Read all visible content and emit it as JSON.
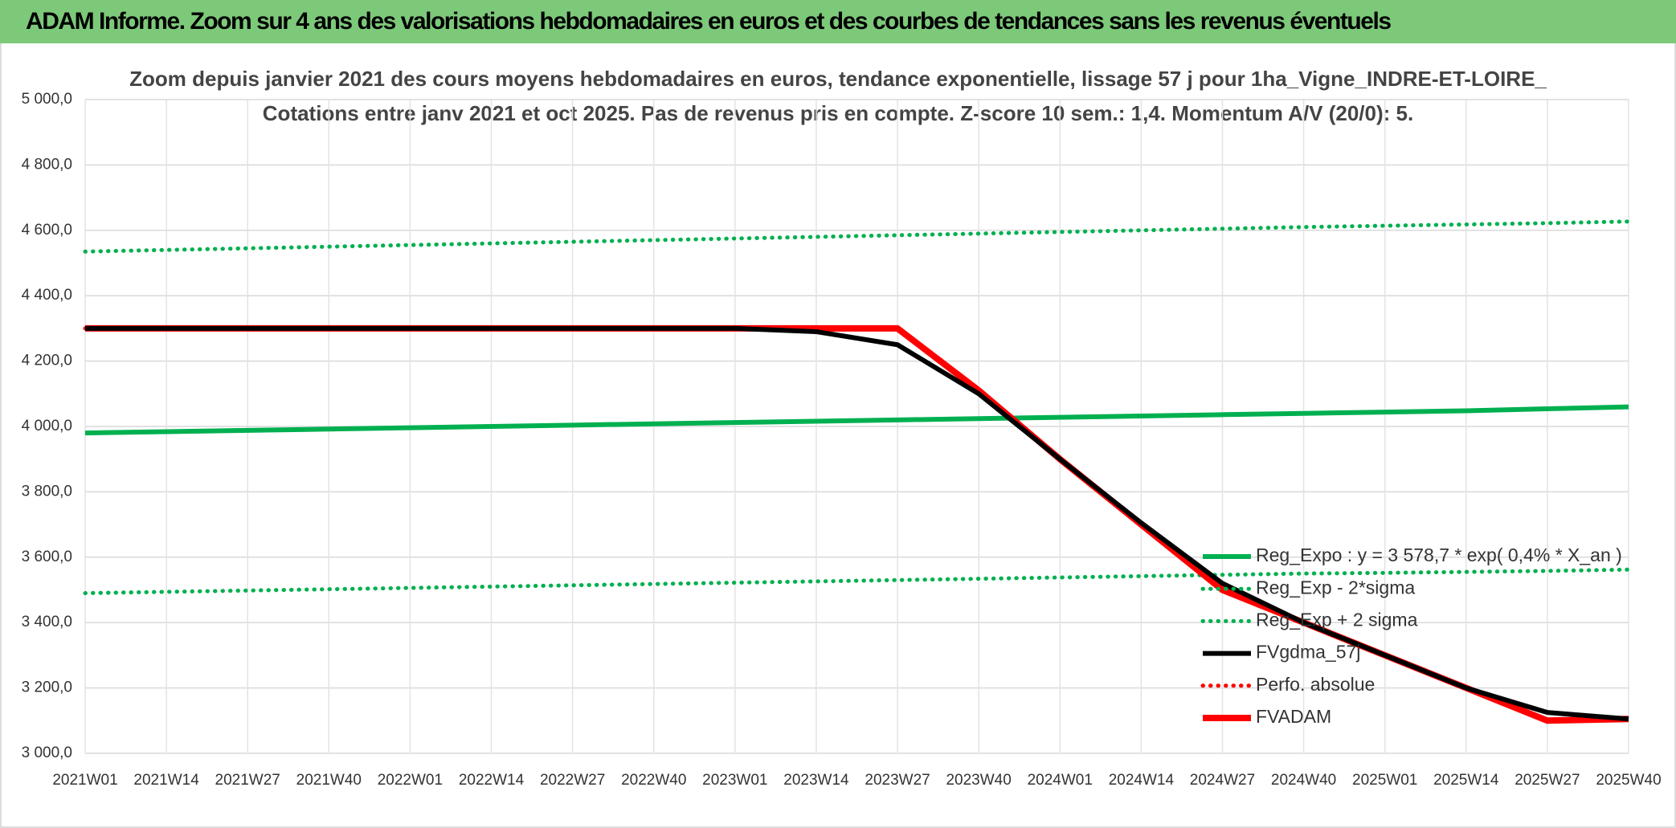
{
  "header": {
    "title": "ADAM Informe. Zoom sur 4 ans des valorisations hebdomadaires en euros et des courbes de tendances sans les revenus éventuels"
  },
  "chart_data": {
    "type": "line",
    "title": "Zoom depuis janvier 2021 des cours moyens hebdomadaires en euros, tendance exponentielle, lissage 57 j pour 1ha_Vigne_INDRE-ET-LOIRE_",
    "subtitle": "Cotations entre janv 2021 et oct 2025. Pas de revenus pris en compte. Z-score 10 sem.: 1,4. Momentum A/V (20/0): 5.",
    "categories": [
      "2021W01",
      "2021W14",
      "2021W27",
      "2021W40",
      "2022W01",
      "2022W14",
      "2022W27",
      "2022W40",
      "2023W01",
      "2023W14",
      "2023W27",
      "2023W40",
      "2024W01",
      "2024W14",
      "2024W27",
      "2024W40",
      "2025W01",
      "2025W14",
      "2025W27",
      "2025W40"
    ],
    "ylim": [
      3000,
      5000
    ],
    "yticks": [
      {
        "value": 3000,
        "label": "3 000,0"
      },
      {
        "value": 3200,
        "label": "3 200,0"
      },
      {
        "value": 3400,
        "label": "3 400,0"
      },
      {
        "value": 3600,
        "label": "3 600,0"
      },
      {
        "value": 3800,
        "label": "3 800,0"
      },
      {
        "value": 4000,
        "label": "4 000,0"
      },
      {
        "value": 4200,
        "label": "4 200,0"
      },
      {
        "value": 4400,
        "label": "4 400,0"
      },
      {
        "value": 4600,
        "label": "4 600,0"
      },
      {
        "value": 4800,
        "label": "4 800,0"
      },
      {
        "value": 5000,
        "label": "5 000,0"
      }
    ],
    "grid": true,
    "series": [
      {
        "name": "Reg_Expo : y = 3 578,7 * exp( 0,4% * X_an )",
        "color": "#00b050",
        "style": "solid",
        "values": [
          3980,
          3984,
          3988,
          3992,
          3996,
          4000,
          4004,
          4008,
          4012,
          4016,
          4020,
          4024,
          4028,
          4032,
          4036,
          4040,
          4044,
          4048,
          4054,
          4060
        ]
      },
      {
        "name": "Reg_Exp - 2*sigma",
        "color": "#00b050",
        "style": "dotted",
        "values": [
          3490,
          3494,
          3498,
          3502,
          3506,
          3510,
          3514,
          3518,
          3522,
          3526,
          3530,
          3534,
          3538,
          3542,
          3546,
          3550,
          3552,
          3555,
          3558,
          3562
        ]
      },
      {
        "name": "Reg_Exp + 2 sigma",
        "color": "#00b050",
        "style": "dotted",
        "values": [
          4535,
          4540,
          4545,
          4550,
          4555,
          4560,
          4565,
          4570,
          4575,
          4580,
          4585,
          4590,
          4595,
          4600,
          4605,
          4610,
          4614,
          4618,
          4622,
          4627
        ]
      },
      {
        "name": "FVgdma_57j",
        "color": "#000000",
        "style": "solid",
        "values": [
          4300,
          4300,
          4300,
          4300,
          4300,
          4300,
          4300,
          4300,
          4300,
          4290,
          4250,
          4100,
          3900,
          3705,
          3520,
          3400,
          3300,
          3200,
          3125,
          3105
        ]
      },
      {
        "name": "Perfo. absolue",
        "color": "#ff0000",
        "style": "dotted",
        "values": [
          4300,
          4300,
          4300,
          4300,
          4300,
          4300,
          4300,
          4300,
          4300,
          4300,
          4300,
          4110,
          3900,
          3700,
          3500,
          3400,
          3300,
          3200,
          3100,
          3105
        ]
      },
      {
        "name": "FVADAM",
        "color": "#ff0000",
        "style": "solid",
        "values": [
          4300,
          4300,
          4300,
          4300,
          4300,
          4300,
          4300,
          4300,
          4300,
          4300,
          4300,
          4110,
          3900,
          3700,
          3500,
          3400,
          3300,
          3200,
          3100,
          3105
        ]
      }
    ]
  }
}
